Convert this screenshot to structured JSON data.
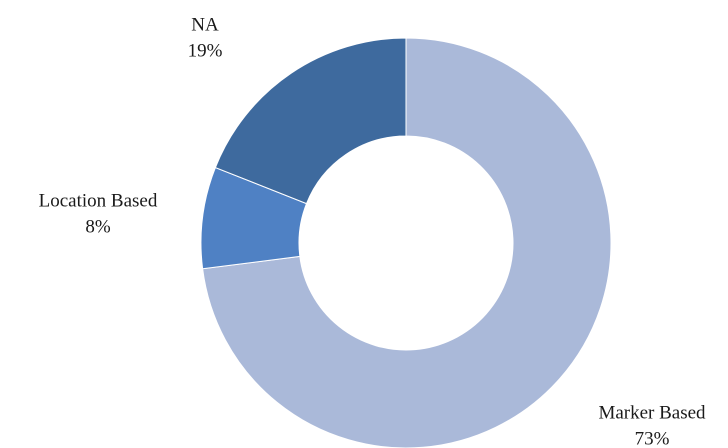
{
  "chart_data": {
    "type": "donut",
    "categories": [
      "Marker Based",
      "Location Based",
      "NA"
    ],
    "values": [
      73,
      8,
      19
    ],
    "value_labels": [
      "73%",
      "8%",
      "19%"
    ],
    "colors": [
      "#aab9d9",
      "#4f81c4",
      "#3e6a9e"
    ]
  }
}
